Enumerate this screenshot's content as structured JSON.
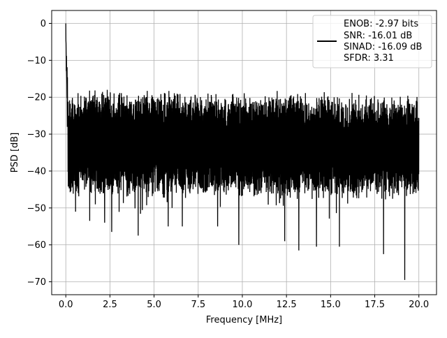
{
  "chart_data": {
    "type": "line",
    "xlabel": "Frequency [MHz]",
    "ylabel": "PSD [dB]",
    "xlim": [
      -0.8,
      21.0
    ],
    "ylim": [
      -73.5,
      3.5
    ],
    "xticks": [
      0.0,
      2.5,
      5.0,
      7.5,
      10.0,
      12.5,
      15.0,
      17.5,
      20.0
    ],
    "xtick_labels": [
      "0.0",
      "2.5",
      "5.0",
      "7.5",
      "10.0",
      "12.5",
      "15.0",
      "17.5",
      "20.0"
    ],
    "yticks": [
      0,
      -10,
      -20,
      -30,
      -40,
      -50,
      -60,
      -70
    ],
    "ytick_labels": [
      "0",
      "−10",
      "−20",
      "−30",
      "−40",
      "−50",
      "−60",
      "−70"
    ],
    "grid": true,
    "legend_position": "top-right",
    "legend_lines": [
      "ENOB: -2.97 bits",
      "SNR: -16.01 dB",
      "SINAD: -16.09 dB",
      "SFDR: 3.31"
    ],
    "series": [
      {
        "color": "#000000",
        "x_range": [
          0.0,
          20.0
        ],
        "peak": {
          "x": 0.0,
          "y": 0.0
        },
        "noise_upper_envelope_db": -20,
        "noise_lower_typical_db": -43,
        "lowest_dips": [
          {
            "x": 0.55,
            "y": -51
          },
          {
            "x": 1.35,
            "y": -53.5
          },
          {
            "x": 2.2,
            "y": -54
          },
          {
            "x": 2.6,
            "y": -56.5
          },
          {
            "x": 4.1,
            "y": -57.5
          },
          {
            "x": 5.8,
            "y": -55
          },
          {
            "x": 6.6,
            "y": -55
          },
          {
            "x": 8.6,
            "y": -55
          },
          {
            "x": 9.8,
            "y": -60
          },
          {
            "x": 12.4,
            "y": -59
          },
          {
            "x": 13.2,
            "y": -61.5
          },
          {
            "x": 14.2,
            "y": -60.5
          },
          {
            "x": 15.5,
            "y": -60.5
          },
          {
            "x": 18.0,
            "y": -62.5
          },
          {
            "x": 19.2,
            "y": -69.5
          }
        ]
      }
    ]
  }
}
